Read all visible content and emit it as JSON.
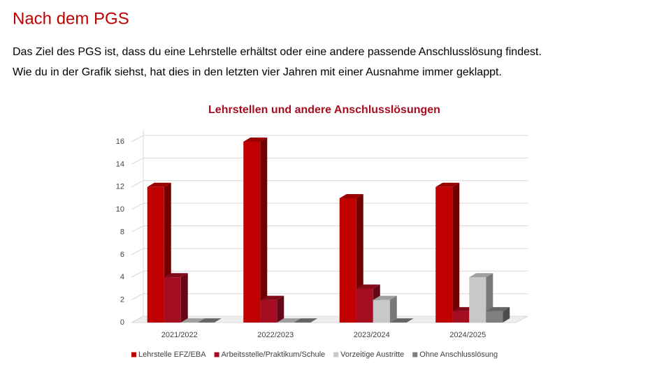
{
  "slide": {
    "title": "Nach dem PGS",
    "paragraphs": [
      "Das Ziel des PGS ist, dass du eine Lehrstelle erhältst oder eine andere passende Anschlusslösung findest.",
      "Wie du in der Grafik siehst, hat dies in den letzten vier Jahren mit einer Ausnahme immer geklappt."
    ]
  },
  "chart_data": {
    "type": "bar3d",
    "title": "Lehrstellen und andere Anschlusslösungen",
    "categories": [
      "2021/2022",
      "2022/2023",
      "2023/2024",
      "2024/2025"
    ],
    "series": [
      {
        "name": "Lehrstelle EFZ/EBA",
        "color": "#c00000",
        "values": [
          12,
          16,
          11,
          12
        ]
      },
      {
        "name": "Arbeitsstelle/Praktikum/Schule",
        "color": "#a50e21",
        "values": [
          4,
          2,
          3,
          1
        ]
      },
      {
        "name": "Vorzeitige Austritte",
        "color": "#c8c8c8",
        "values": [
          0,
          0,
          2,
          4
        ]
      },
      {
        "name": "Ohne Anschlusslösung",
        "color": "#7f7f7f",
        "values": [
          0,
          0,
          0,
          1
        ]
      }
    ],
    "ylim": [
      0,
      16
    ],
    "yticks": [
      0,
      2,
      4,
      6,
      8,
      10,
      12,
      14,
      16
    ],
    "grid": true,
    "legend": "bottom"
  }
}
